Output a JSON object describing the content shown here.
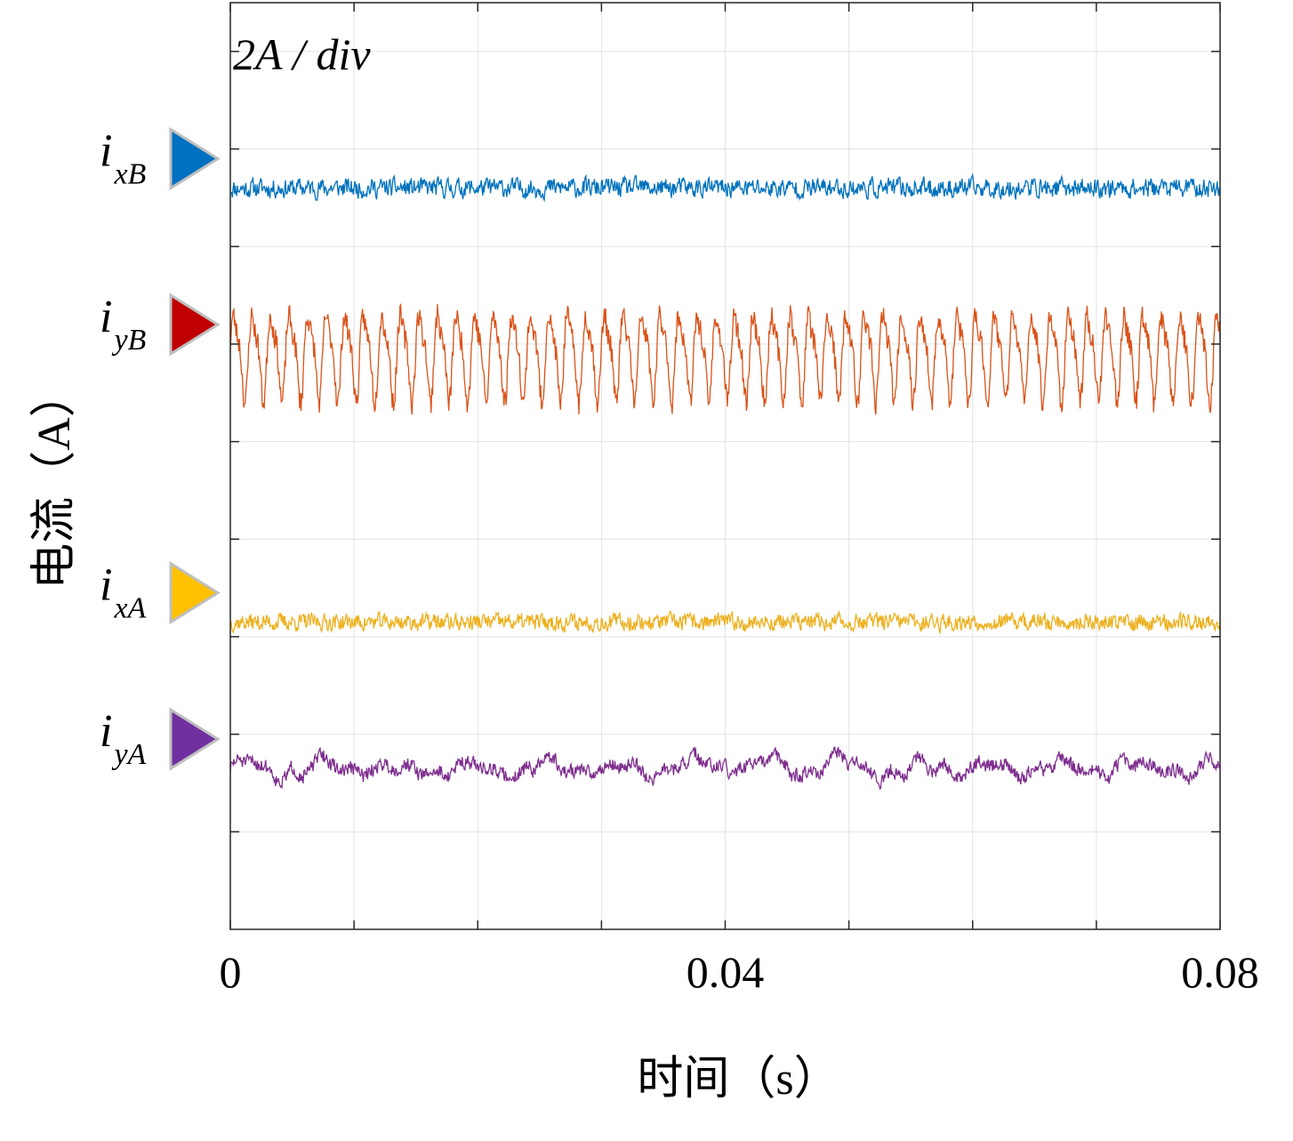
{
  "chart_data": {
    "type": "line",
    "scale_label": "2A / div",
    "xlabel": "时间（s）",
    "ylabel": "电流（A）",
    "xlim": [
      0,
      0.08
    ],
    "x_ticks": [
      0,
      0.01,
      0.02,
      0.03,
      0.04,
      0.05,
      0.06,
      0.07,
      0.08
    ],
    "x_tick_labels": [
      "0",
      "",
      "",
      "",
      "0.04",
      "",
      "",
      "",
      "0.08"
    ],
    "ylim_div": [
      0,
      9.5
    ],
    "y_grid_div": [
      1,
      2,
      3,
      4,
      5,
      6,
      7,
      8,
      9
    ],
    "grid": true,
    "series": [
      {
        "name": "i_xB",
        "label_main": "i",
        "label_sub": "xB",
        "color": "#0072BD",
        "marker_color": "#0070C0",
        "baseline_div": 7.6,
        "amplitude_div": 0.12,
        "oscillation": "broadband noise",
        "seed": 11
      },
      {
        "name": "i_yB",
        "label_main": "i",
        "label_sub": "yB",
        "color": "#D95319",
        "marker_color": "#C00000",
        "baseline_div": 5.9,
        "amplitude_div": 0.5,
        "oscillation": "periodic ~1.5 ms",
        "seed": 23
      },
      {
        "name": "i_xA",
        "label_main": "i",
        "label_sub": "xA",
        "color": "#EDB120",
        "marker_color": "#FFC000",
        "baseline_div": 3.15,
        "amplitude_div": 0.1,
        "oscillation": "broadband noise",
        "seed": 37
      },
      {
        "name": "i_yA",
        "label_main": "i",
        "label_sub": "yA",
        "color": "#7E2F8E",
        "marker_color": "#7030A0",
        "baseline_div": 1.65,
        "amplitude_div": 0.1,
        "oscillation": "low-frequency wobble",
        "seed": 51
      }
    ]
  }
}
